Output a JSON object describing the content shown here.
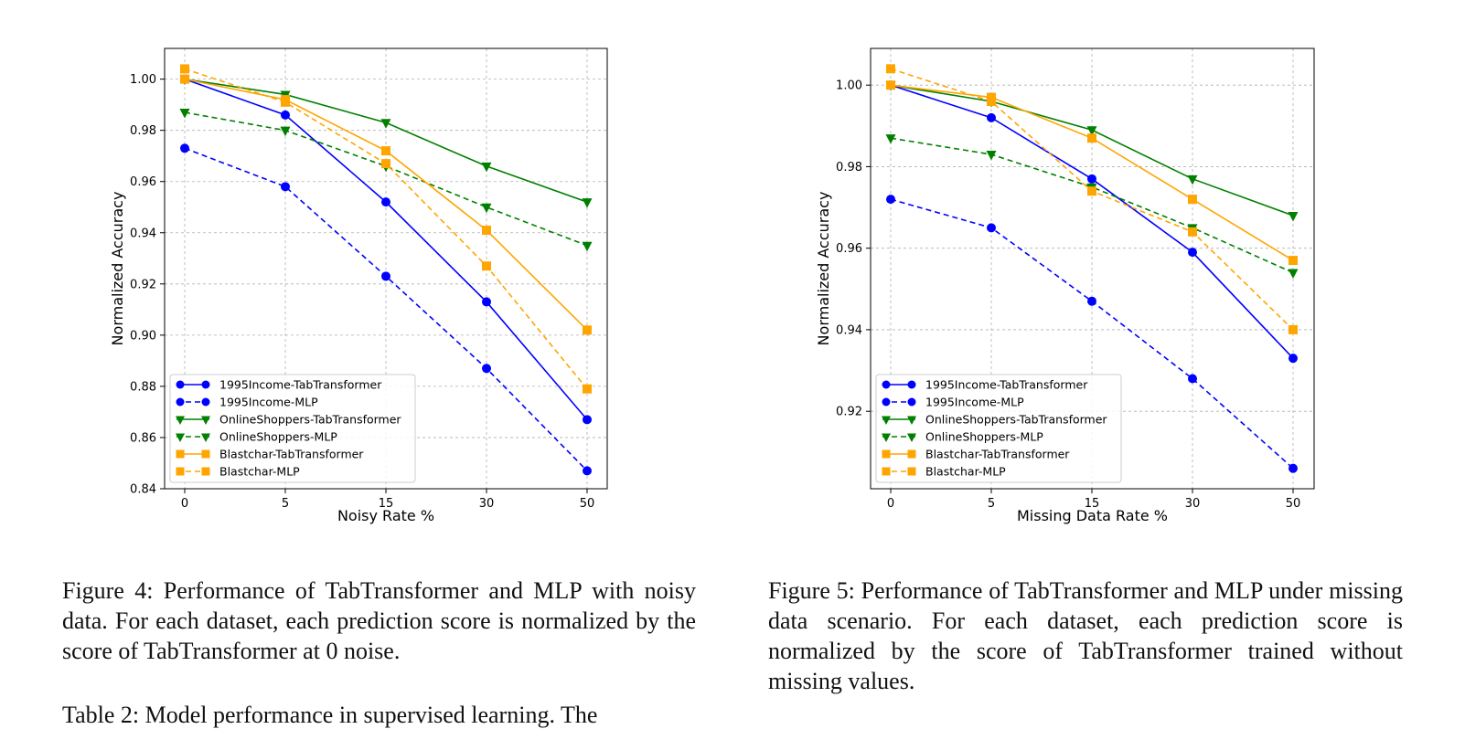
{
  "chart_data": [
    {
      "type": "line",
      "xlabel": "Noisy Rate %",
      "ylabel": "Normalized Accuracy",
      "categories": [
        "0",
        "5",
        "15",
        "30",
        "50"
      ],
      "ylim": [
        0.84,
        1.012
      ],
      "yticks": [
        "0.84",
        "0.86",
        "0.88",
        "0.90",
        "0.92",
        "0.94",
        "0.96",
        "0.98",
        "1.00"
      ],
      "grid": true,
      "legend_position": "lower-left",
      "series": [
        {
          "name": "1995Income-TabTransformer",
          "values": [
            1.0,
            0.986,
            0.952,
            0.913,
            0.867
          ],
          "color": "#0000ff",
          "dashed": false,
          "marker": "circle"
        },
        {
          "name": "1995Income-MLP",
          "values": [
            0.973,
            0.958,
            0.923,
            0.887,
            0.847
          ],
          "color": "#0000ff",
          "dashed": true,
          "marker": "circle"
        },
        {
          "name": "OnlineShoppers-TabTransformer",
          "values": [
            1.0,
            0.994,
            0.983,
            0.966,
            0.952
          ],
          "color": "#008000",
          "dashed": false,
          "marker": "triangle-down"
        },
        {
          "name": "OnlineShoppers-MLP",
          "values": [
            0.987,
            0.98,
            0.966,
            0.95,
            0.935
          ],
          "color": "#008000",
          "dashed": true,
          "marker": "triangle-down"
        },
        {
          "name": "Blastchar-TabTransformer",
          "values": [
            1.0,
            0.992,
            0.972,
            0.941,
            0.902
          ],
          "color": "#ffa500",
          "dashed": false,
          "marker": "square"
        },
        {
          "name": "Blastchar-MLP",
          "values": [
            1.004,
            0.991,
            0.967,
            0.927,
            0.879
          ],
          "color": "#ffa500",
          "dashed": true,
          "marker": "square"
        }
      ]
    },
    {
      "type": "line",
      "xlabel": "Missing Data Rate %",
      "ylabel": "Normalized Accuracy",
      "categories": [
        "0",
        "5",
        "15",
        "30",
        "50"
      ],
      "ylim": [
        0.901,
        1.009
      ],
      "yticks": [
        "0.92",
        "0.94",
        "0.96",
        "0.98",
        "1.00"
      ],
      "grid": true,
      "legend_position": "lower-left",
      "series": [
        {
          "name": "1995Income-TabTransformer",
          "values": [
            1.0,
            0.992,
            0.977,
            0.959,
            0.933
          ],
          "color": "#0000ff",
          "dashed": false,
          "marker": "circle"
        },
        {
          "name": "1995Income-MLP",
          "values": [
            0.972,
            0.965,
            0.947,
            0.928,
            0.906
          ],
          "color": "#0000ff",
          "dashed": true,
          "marker": "circle"
        },
        {
          "name": "OnlineShoppers-TabTransformer",
          "values": [
            1.0,
            0.996,
            0.989,
            0.977,
            0.968
          ],
          "color": "#008000",
          "dashed": false,
          "marker": "triangle-down"
        },
        {
          "name": "OnlineShoppers-MLP",
          "values": [
            0.987,
            0.983,
            0.975,
            0.965,
            0.954
          ],
          "color": "#008000",
          "dashed": true,
          "marker": "triangle-down"
        },
        {
          "name": "Blastchar-TabTransformer",
          "values": [
            1.0,
            0.997,
            0.987,
            0.972,
            0.957
          ],
          "color": "#ffa500",
          "dashed": false,
          "marker": "square"
        },
        {
          "name": "Blastchar-MLP",
          "values": [
            1.004,
            0.996,
            0.974,
            0.964,
            0.94
          ],
          "color": "#ffa500",
          "dashed": true,
          "marker": "square"
        }
      ]
    }
  ],
  "captions": {
    "figure4": "Figure 4: Performance of TabTransformer and MLP with noisy data. For each dataset, each prediction score is normalized by the score of TabTransformer at 0 noise.",
    "figure5": "Figure 5: Performance of TabTransformer and MLP under missing data scenario. For each dataset, each prediction score is normalized by the score of TabTransformer trained without missing values.",
    "cut_text": "Table 2: Model performance in supervised learning. The"
  }
}
